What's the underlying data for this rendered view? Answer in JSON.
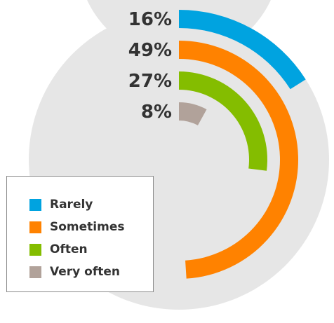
{
  "chart_data": {
    "type": "radial-bar",
    "title": "",
    "series": [
      {
        "name": "Rarely",
        "value": 16,
        "label": "16%",
        "color": "#00a3e0"
      },
      {
        "name": "Sometimes",
        "value": 49,
        "label": "49%",
        "color": "#ff8200"
      },
      {
        "name": "Often",
        "value": 27,
        "label": "27%",
        "color": "#84bd00"
      },
      {
        "name": "Very often",
        "value": 8,
        "label": "8%",
        "color": "#b1a29a"
      }
    ],
    "max": 100,
    "track_color": "#e6e6e6",
    "legend": {
      "position": "bottom-left"
    }
  },
  "legend_items": [
    {
      "label": "Rarely",
      "color": "#00a3e0"
    },
    {
      "label": "Sometimes",
      "color": "#ff8200"
    },
    {
      "label": "Often",
      "color": "#84bd00"
    },
    {
      "label": "Very often",
      "color": "#b1a29a"
    }
  ]
}
